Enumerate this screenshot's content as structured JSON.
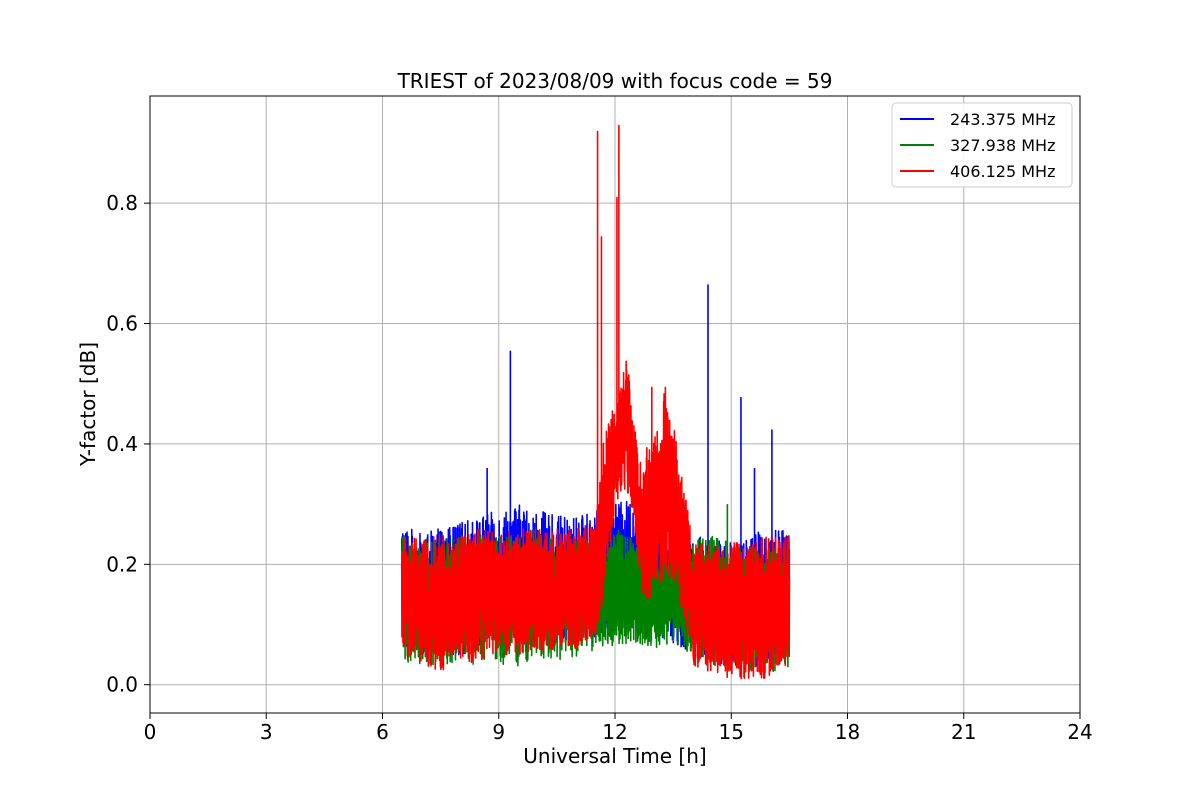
{
  "chart_data": {
    "type": "line",
    "title": "TRIEST of 2023/08/09 with focus code = 59",
    "xlabel": "Universal Time [h]",
    "ylabel": "Y-factor [dB]",
    "xlim": [
      0,
      24
    ],
    "ylim": [
      -0.047,
      0.978
    ],
    "xticks": [
      0,
      3,
      6,
      9,
      12,
      15,
      18,
      21,
      24
    ],
    "xtick_labels": [
      "0",
      "3",
      "6",
      "9",
      "12",
      "15",
      "18",
      "21",
      "24"
    ],
    "yticks": [
      0.0,
      0.2,
      0.4,
      0.6,
      0.8
    ],
    "ytick_labels": [
      "0.0",
      "0.2",
      "0.4",
      "0.6",
      "0.8"
    ],
    "grid": true,
    "legend_position": "top-right",
    "series": [
      {
        "name": "243.375 MHz",
        "color": "#0000ff",
        "envelope": {
          "x": [
            6.5,
            7.0,
            7.5,
            8.0,
            8.5,
            9.0,
            9.5,
            10.0,
            10.5,
            11.0,
            11.5,
            12.0,
            12.5,
            13.0,
            13.5,
            14.0,
            14.5,
            15.0,
            15.5,
            16.0,
            16.5
          ],
          "upper": [
            0.27,
            0.25,
            0.26,
            0.27,
            0.28,
            0.29,
            0.3,
            0.29,
            0.28,
            0.28,
            0.29,
            0.3,
            0.31,
            0.29,
            0.27,
            0.25,
            0.24,
            0.24,
            0.25,
            0.26,
            0.26
          ],
          "lower": [
            0.06,
            0.05,
            0.05,
            0.05,
            0.06,
            0.06,
            0.06,
            0.06,
            0.06,
            0.07,
            0.08,
            0.1,
            0.09,
            0.08,
            0.07,
            0.05,
            0.04,
            0.03,
            0.03,
            0.03,
            0.05
          ]
        },
        "spikes": [
          {
            "x": 8.7,
            "y": 0.36
          },
          {
            "x": 9.3,
            "y": 0.555
          },
          {
            "x": 13.65,
            "y": 0.33
          },
          {
            "x": 14.4,
            "y": 0.665
          },
          {
            "x": 15.25,
            "y": 0.478
          },
          {
            "x": 15.6,
            "y": 0.36
          },
          {
            "x": 16.05,
            "y": 0.424
          }
        ]
      },
      {
        "name": "327.938 MHz",
        "color": "#008000",
        "envelope": {
          "x": [
            6.5,
            7.0,
            7.5,
            8.0,
            8.5,
            9.0,
            9.5,
            10.0,
            10.5,
            11.0,
            11.5,
            12.0,
            12.5,
            13.0,
            13.5,
            14.0,
            14.5,
            15.0,
            15.5,
            16.0,
            16.5
          ],
          "upper": [
            0.25,
            0.24,
            0.24,
            0.25,
            0.25,
            0.25,
            0.26,
            0.26,
            0.25,
            0.25,
            0.24,
            0.26,
            0.24,
            0.22,
            0.23,
            0.24,
            0.25,
            0.24,
            0.23,
            0.23,
            0.23
          ],
          "lower": [
            0.04,
            0.03,
            0.03,
            0.04,
            0.03,
            0.03,
            0.03,
            0.04,
            0.04,
            0.04,
            0.06,
            0.06,
            0.07,
            0.06,
            0.07,
            0.04,
            0.03,
            0.03,
            0.02,
            0.02,
            0.03
          ]
        },
        "spikes": [
          {
            "x": 14.9,
            "y": 0.3
          }
        ]
      },
      {
        "name": "406.125 MHz",
        "color": "#ff0000",
        "envelope": {
          "x": [
            6.5,
            7.0,
            7.5,
            8.0,
            8.5,
            9.0,
            9.5,
            10.0,
            10.5,
            11.0,
            11.5,
            11.8,
            12.0,
            12.3,
            12.5,
            12.7,
            13.0,
            13.3,
            13.6,
            14.0,
            14.5,
            15.0,
            15.5,
            16.0,
            16.5
          ],
          "upper": [
            0.25,
            0.24,
            0.25,
            0.25,
            0.26,
            0.25,
            0.26,
            0.26,
            0.26,
            0.26,
            0.27,
            0.47,
            0.45,
            0.55,
            0.43,
            0.37,
            0.43,
            0.49,
            0.41,
            0.24,
            0.23,
            0.24,
            0.24,
            0.25,
            0.25
          ],
          "lower": [
            0.04,
            0.03,
            0.02,
            0.03,
            0.04,
            0.05,
            0.05,
            0.05,
            0.06,
            0.06,
            0.08,
            0.17,
            0.3,
            0.33,
            0.25,
            0.14,
            0.14,
            0.18,
            0.16,
            0.03,
            0.02,
            0.01,
            0.01,
            0.01,
            0.03
          ]
        },
        "spikes": [
          {
            "x": 11.55,
            "y": 0.92
          },
          {
            "x": 11.65,
            "y": 0.745
          },
          {
            "x": 12.05,
            "y": 0.81
          },
          {
            "x": 12.1,
            "y": 0.93
          },
          {
            "x": 12.95,
            "y": 0.495
          },
          {
            "x": 13.3,
            "y": 0.495
          }
        ]
      }
    ]
  }
}
